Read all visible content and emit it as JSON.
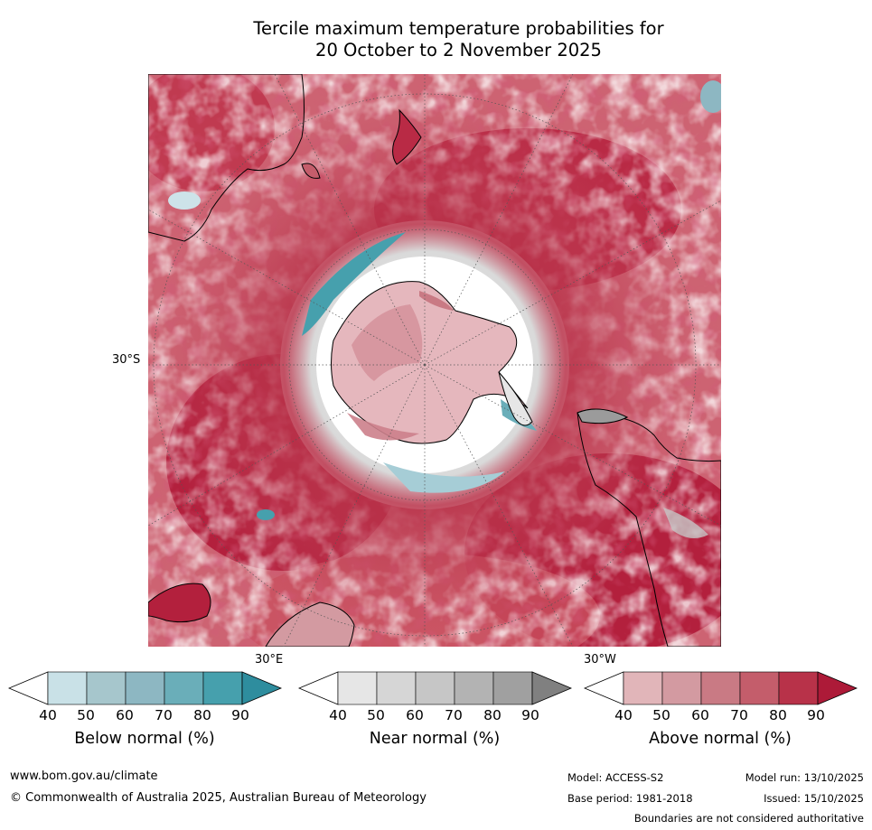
{
  "title": {
    "line1": "Tercile maximum temperature probabilities for",
    "line2": "20 October to 2 November 2025"
  },
  "map": {
    "lat_label": "30°S",
    "lon_label_east": "30°E",
    "lon_label_west": "30°W"
  },
  "colorbars": [
    {
      "label": "Below normal (%)",
      "ticks": [
        "40",
        "50",
        "60",
        "70",
        "80",
        "90"
      ],
      "colors": [
        "#ffffff",
        "#c9e1e7",
        "#a6c6cc",
        "#8db7c2",
        "#6aaeb9",
        "#46a0ad",
        "#2e8d9e"
      ]
    },
    {
      "label": "Near normal (%)",
      "ticks": [
        "40",
        "50",
        "60",
        "70",
        "80",
        "90"
      ],
      "colors": [
        "#ffffff",
        "#e6e6e6",
        "#d6d6d6",
        "#c6c6c6",
        "#b3b3b3",
        "#a0a0a0",
        "#808080"
      ]
    },
    {
      "label": "Above normal (%)",
      "ticks": [
        "40",
        "50",
        "60",
        "70",
        "80",
        "90"
      ],
      "colors": [
        "#ffffff",
        "#e1b5b9",
        "#d39aa1",
        "#c97a84",
        "#c45d6b",
        "#b83249",
        "#ad1a38"
      ]
    }
  ],
  "footer": {
    "url": "www.bom.gov.au/climate",
    "copyright": "© Commonwealth of Australia 2025, Australian Bureau of Meteorology",
    "model": "Model: ACCESS-S2",
    "base_period": "Base period: 1981-2018",
    "model_run": "Model run: 13/10/2025",
    "issued": "Issued: 15/10/2025",
    "disclaimer": "Boundaries are not considered authoritative"
  }
}
